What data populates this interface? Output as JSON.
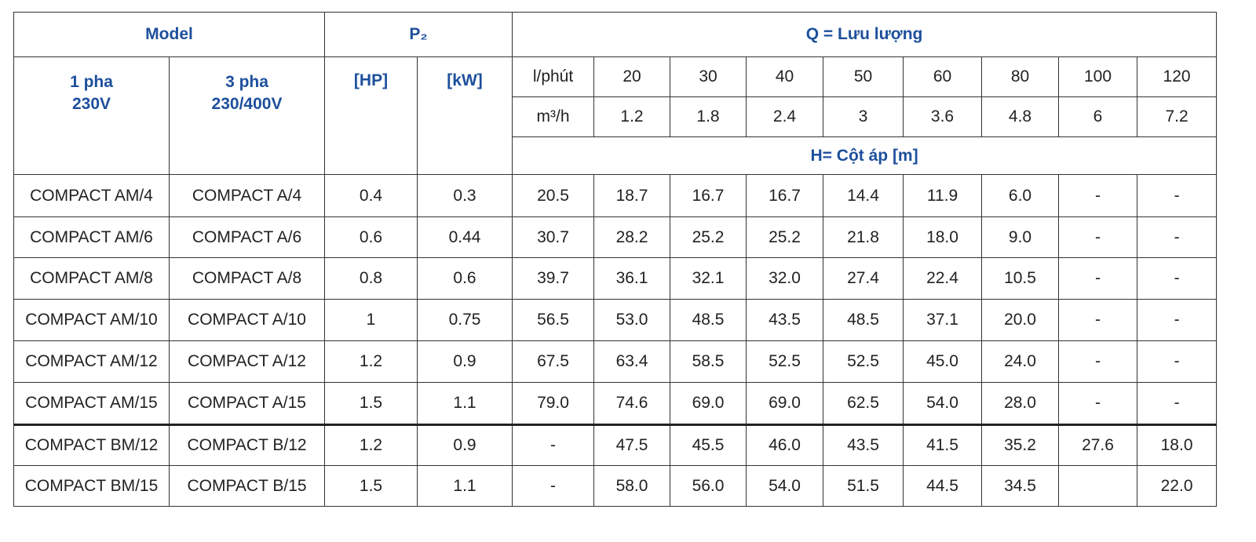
{
  "header": {
    "model": "Model",
    "phase1": [
      "1 pha",
      "230V"
    ],
    "phase3": [
      "3 pha",
      "230/400V"
    ],
    "power": "P₂",
    "hp": "[HP]",
    "kw": "[kW]",
    "flow": "Q = Lưu lượng",
    "flow_units": [
      "l/phút",
      "m³/h"
    ],
    "flow_lpm": [
      "20",
      "30",
      "40",
      "50",
      "60",
      "80",
      "100",
      "120"
    ],
    "flow_m3h": [
      "1.2",
      "1.8",
      "2.4",
      "3",
      "3.6",
      "4.8",
      "6",
      "7.2"
    ],
    "head": "H= Cột áp [m]"
  },
  "rows": [
    [
      "COMPACT AM/4",
      "COMPACT A/4",
      "0.4",
      "0.3",
      "20.5",
      "18.7",
      "16.7",
      "16.7",
      "14.4",
      "11.9",
      "6.0",
      "-",
      "-"
    ],
    [
      "COMPACT AM/6",
      "COMPACT A/6",
      "0.6",
      "0.44",
      "30.7",
      "28.2",
      "25.2",
      "25.2",
      "21.8",
      "18.0",
      "9.0",
      "-",
      "-"
    ],
    [
      "COMPACT AM/8",
      "COMPACT A/8",
      "0.8",
      "0.6",
      "39.7",
      "36.1",
      "32.1",
      "32.0",
      "27.4",
      "22.4",
      "10.5",
      "-",
      "-"
    ],
    [
      "COMPACT AM/10",
      "COMPACT A/10",
      "1",
      "0.75",
      "56.5",
      "53.0",
      "48.5",
      "43.5",
      "48.5",
      "37.1",
      "20.0",
      "-",
      "-"
    ],
    [
      "COMPACT AM/12",
      "COMPACT A/12",
      "1.2",
      "0.9",
      "67.5",
      "63.4",
      "58.5",
      "52.5",
      "52.5",
      "45.0",
      "24.0",
      "-",
      "-"
    ],
    [
      "COMPACT AM/15",
      "COMPACT A/15",
      "1.5",
      "1.1",
      "79.0",
      "74.6",
      "69.0",
      "69.0",
      "62.5",
      "54.0",
      "28.0",
      "-",
      "-"
    ],
    [
      "COMPACT BM/12",
      "COMPACT B/12",
      "1.2",
      "0.9",
      "-",
      "47.5",
      "45.5",
      "46.0",
      "43.5",
      "41.5",
      "35.2",
      "27.6",
      "18.0"
    ],
    [
      "COMPACT BM/15",
      "COMPACT B/15",
      "1.5",
      "1.1",
      "-",
      "58.0",
      "56.0",
      "54.0",
      "51.5",
      "44.5",
      "34.5",
      null,
      "22.0"
    ]
  ]
}
